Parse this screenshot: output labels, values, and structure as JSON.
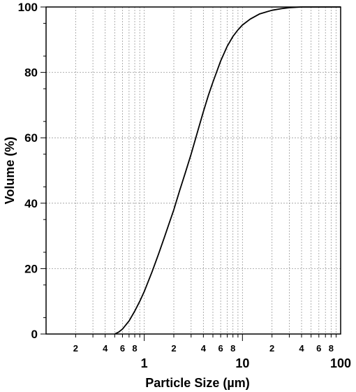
{
  "chart_data": {
    "type": "line",
    "xlabel": "Particle Size (µm)",
    "ylabel": "Volume (%)",
    "xscale": "log",
    "xlim": [
      0.1,
      100
    ],
    "ylim": [
      0,
      100
    ],
    "grid": true,
    "x_major_ticks": [
      {
        "value": 1,
        "label": "1"
      },
      {
        "value": 10,
        "label": "10"
      },
      {
        "value": 100,
        "label": "100"
      }
    ],
    "x_minor_tick_labels": [
      {
        "value": 0.2,
        "label": "2"
      },
      {
        "value": 0.4,
        "label": "4"
      },
      {
        "value": 0.6,
        "label": "6"
      },
      {
        "value": 0.8,
        "label": "8"
      },
      {
        "value": 2,
        "label": "2"
      },
      {
        "value": 4,
        "label": "4"
      },
      {
        "value": 6,
        "label": "6"
      },
      {
        "value": 8,
        "label": "8"
      },
      {
        "value": 20,
        "label": "2"
      },
      {
        "value": 40,
        "label": "4"
      },
      {
        "value": 60,
        "label": "6"
      },
      {
        "value": 80,
        "label": "8"
      }
    ],
    "y_ticks": [
      {
        "value": 0,
        "label": "0"
      },
      {
        "value": 20,
        "label": "20"
      },
      {
        "value": 40,
        "label": "40"
      },
      {
        "value": 60,
        "label": "60"
      },
      {
        "value": 80,
        "label": "80"
      },
      {
        "value": 100,
        "label": "100"
      }
    ],
    "series": [
      {
        "x": [
          0.5,
          0.55,
          0.6,
          0.7,
          0.8,
          0.9,
          1.0,
          1.2,
          1.4,
          1.6,
          1.8,
          2.0,
          2.3,
          2.6,
          3.0,
          3.5,
          4.0,
          4.5,
          5.0,
          6.0,
          7.0,
          8.0,
          9.0,
          10,
          12,
          15,
          20,
          25,
          30,
          40,
          50,
          100
        ],
        "y": [
          0,
          0.6,
          1.5,
          4,
          7,
          10,
          13,
          19,
          24.5,
          29.5,
          34,
          38,
          44,
          49,
          55,
          62,
          68,
          73,
          77,
          83.5,
          88,
          91,
          93,
          94.5,
          96.3,
          97.9,
          99,
          99.5,
          99.8,
          100,
          100,
          100
        ],
        "color": "#000000"
      }
    ]
  }
}
